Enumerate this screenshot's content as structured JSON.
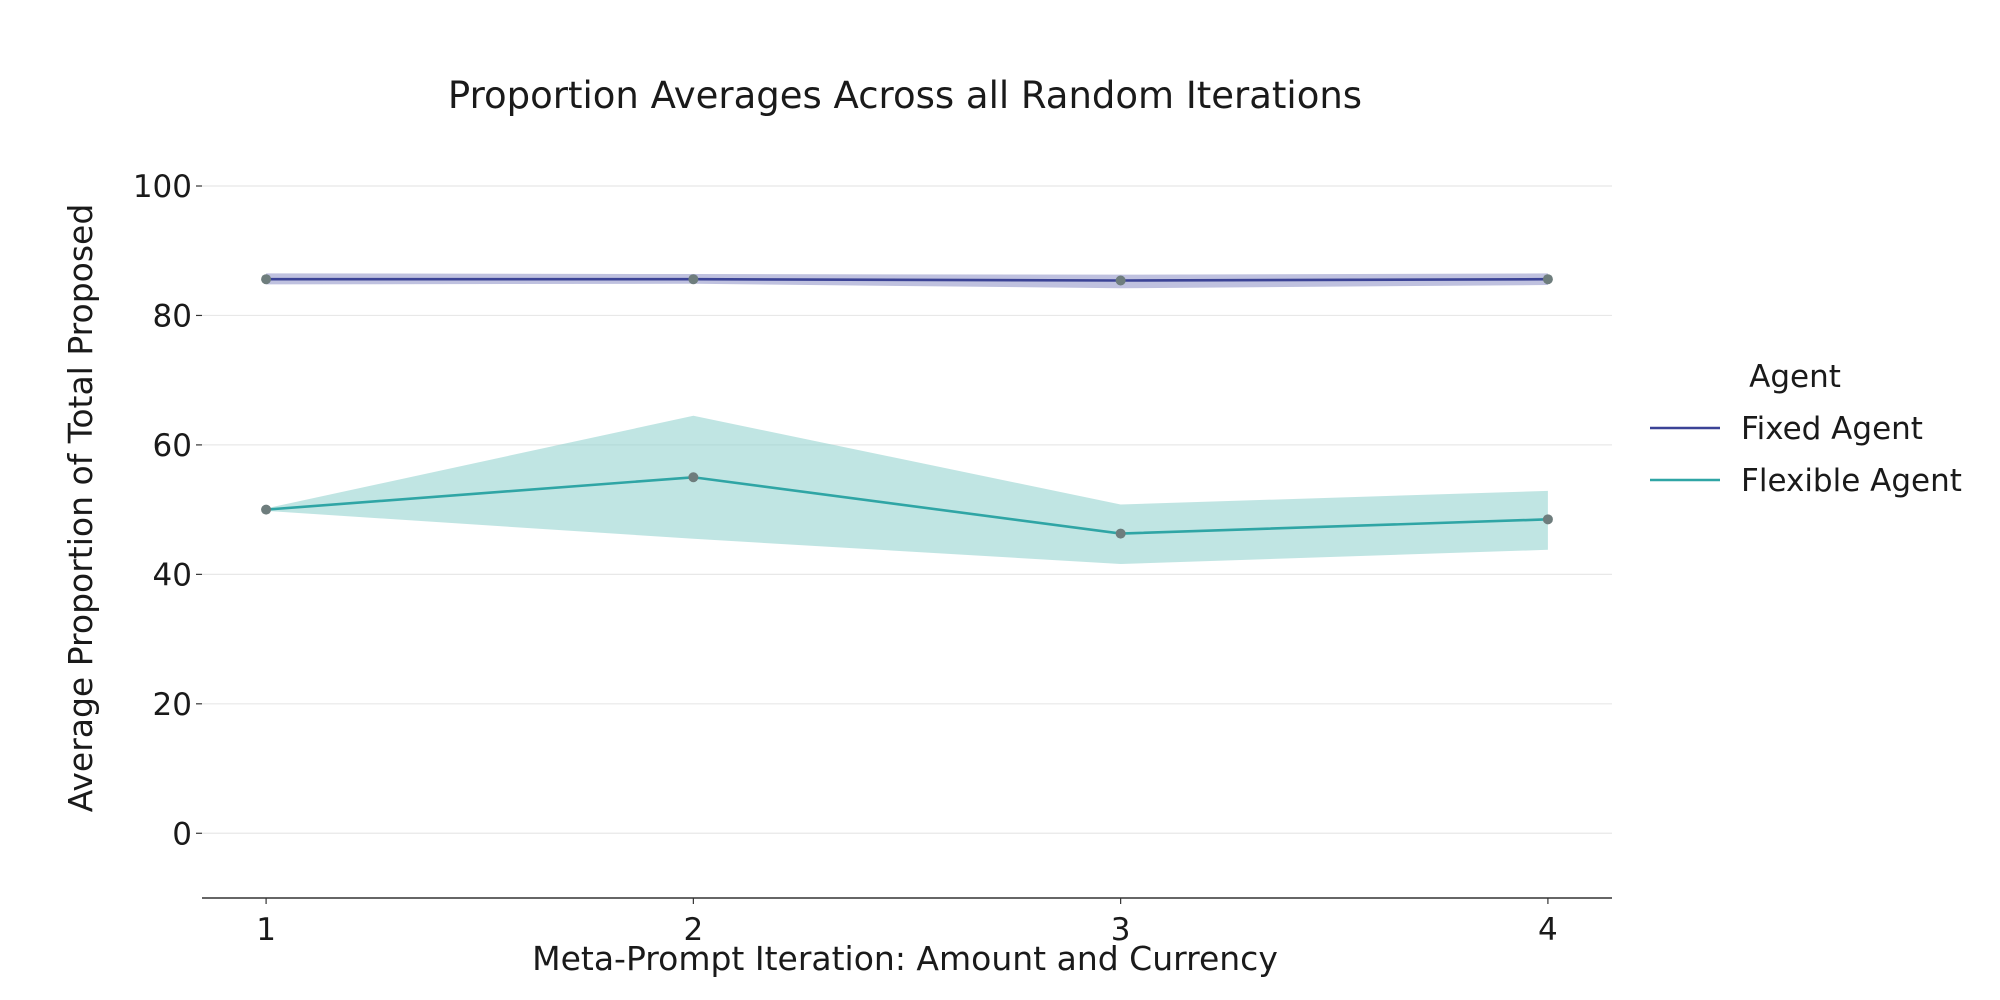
{
  "chart_data": {
    "type": "line",
    "title": "Proportion Averages Across all Random Iterations",
    "xlabel": "Meta-Prompt Iteration: Amount and Currency",
    "ylabel": "Average Proportion of Total Proposed",
    "x": [
      1,
      2,
      3,
      4
    ],
    "x_ticks": [
      "1",
      "2",
      "3",
      "4"
    ],
    "y_ticks": [
      "0",
      "20",
      "40",
      "60",
      "80",
      "100"
    ],
    "xlim": [
      0.85,
      4.15
    ],
    "ylim": [
      -10,
      100
    ],
    "grid": "horizontal",
    "legend": {
      "title": "Agent",
      "placement": "right"
    },
    "series": [
      {
        "name": "Fixed Agent",
        "color": "#3b4396",
        "band_color": "#8b8ec4",
        "values": [
          85.6,
          85.6,
          85.4,
          85.6
        ],
        "lower": [
          84.8,
          84.9,
          84.2,
          84.7
        ],
        "upper": [
          86.5,
          86.4,
          86.3,
          86.5
        ]
      },
      {
        "name": "Flexible Agent",
        "color": "#2fa5a5",
        "band_color": "#8ccfcc",
        "values": [
          50.0,
          55.0,
          46.3,
          48.5
        ],
        "lower": [
          49.8,
          45.5,
          41.6,
          43.8
        ],
        "upper": [
          50.2,
          64.5,
          50.8,
          52.9
        ]
      }
    ],
    "marker_color": "#6e7d7d"
  }
}
